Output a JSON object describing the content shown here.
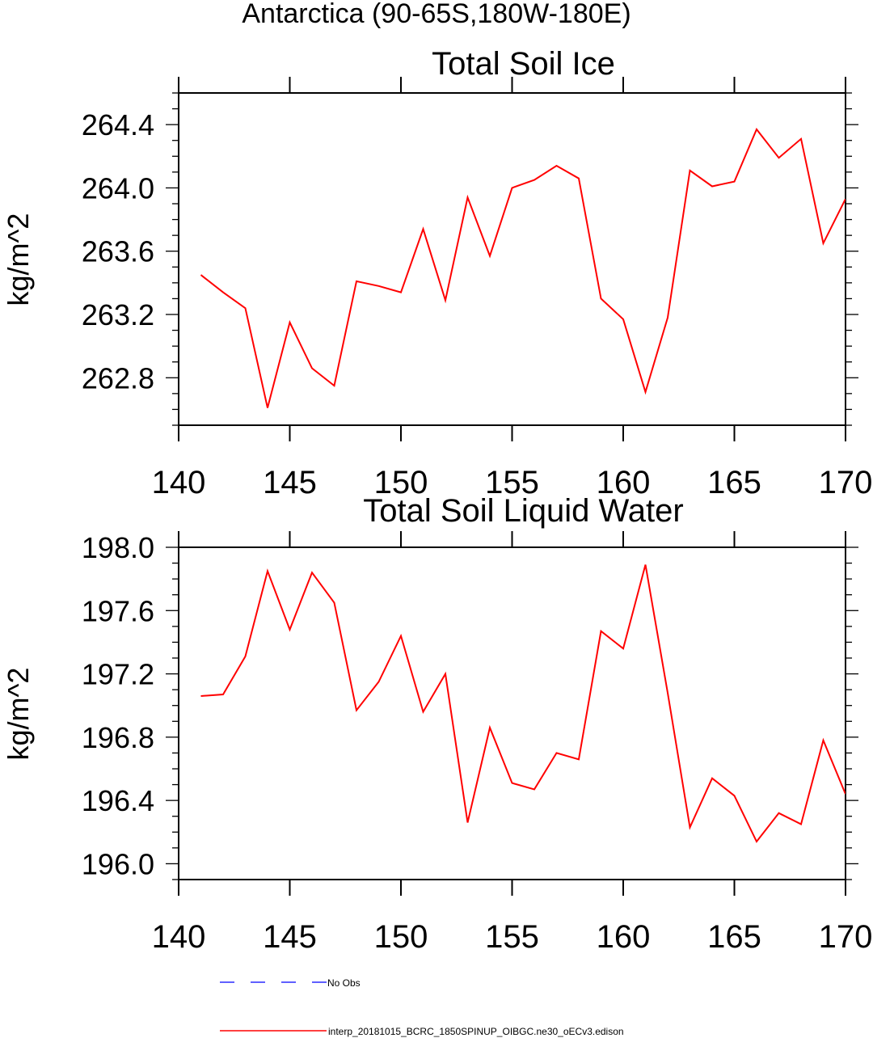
{
  "page": {
    "main_title": "Antarctica (90-65S,180W-180E)"
  },
  "colors": {
    "model": "#ff0000",
    "obs": "#0000ff",
    "axis": "#000000"
  },
  "legend": {
    "obs_label": "No Obs",
    "model_label": "interp_20181015_BCRC_1850SPINUP_OIBGC.ne30_oECv3.edison"
  },
  "chart_data": [
    {
      "type": "line",
      "title": "Total Soil Ice",
      "xlabel": "",
      "ylabel": "kg/m^2",
      "xlim": [
        140,
        170
      ],
      "ylim": [
        262.5,
        264.6
      ],
      "xticks": [
        140,
        145,
        150,
        155,
        160,
        165,
        170
      ],
      "xtick_labels": [
        "140",
        "145",
        "150",
        "155",
        "160",
        "165",
        "170"
      ],
      "yticks": [
        262.8,
        263.2,
        263.6,
        264.0,
        264.4
      ],
      "ytick_labels": [
        "262.8",
        "263.2",
        "263.6",
        "264.0",
        "264.4"
      ],
      "x": [
        141,
        142,
        143,
        144,
        145,
        146,
        147,
        148,
        149,
        150,
        151,
        152,
        153,
        154,
        155,
        156,
        157,
        158,
        159,
        160,
        161,
        162,
        163,
        164,
        165,
        166,
        167,
        168,
        169,
        170
      ],
      "series": [
        {
          "name": "interp_20181015_BCRC_1850SPINUP_OIBGC.ne30_oECv3.edison",
          "values": [
            263.45,
            263.34,
            263.24,
            262.61,
            263.15,
            262.86,
            262.75,
            263.41,
            263.38,
            263.34,
            263.74,
            263.29,
            263.94,
            263.57,
            264.0,
            264.05,
            264.14,
            264.06,
            263.3,
            263.17,
            262.71,
            263.18,
            264.11,
            264.01,
            264.04,
            264.37,
            264.19,
            264.31,
            263.65,
            263.93
          ]
        }
      ]
    },
    {
      "type": "line",
      "title": "Total Soil Liquid Water",
      "xlabel": "",
      "ylabel": "kg/m^2",
      "xlim": [
        140,
        170
      ],
      "ylim": [
        195.9,
        198.0
      ],
      "xticks": [
        140,
        145,
        150,
        155,
        160,
        165,
        170
      ],
      "xtick_labels": [
        "140",
        "145",
        "150",
        "155",
        "160",
        "165",
        "170"
      ],
      "yticks": [
        196.0,
        196.4,
        196.8,
        197.2,
        197.6,
        198.0
      ],
      "ytick_labels": [
        "196.0",
        "196.4",
        "196.8",
        "197.2",
        "197.6",
        "198.0"
      ],
      "x": [
        141,
        142,
        143,
        144,
        145,
        146,
        147,
        148,
        149,
        150,
        151,
        152,
        153,
        154,
        155,
        156,
        157,
        158,
        159,
        160,
        161,
        162,
        163,
        164,
        165,
        166,
        167,
        168,
        169,
        170
      ],
      "series": [
        {
          "name": "interp_20181015_BCRC_1850SPINUP_OIBGC.ne30_oECv3.edison",
          "values": [
            197.06,
            197.07,
            197.31,
            197.85,
            197.48,
            197.84,
            197.65,
            196.97,
            197.15,
            197.44,
            196.96,
            197.2,
            196.26,
            196.86,
            196.51,
            196.47,
            196.7,
            196.66,
            197.47,
            197.36,
            197.89,
            197.08,
            196.23,
            196.54,
            196.43,
            196.14,
            196.32,
            196.25,
            196.78,
            196.44
          ]
        }
      ]
    }
  ]
}
